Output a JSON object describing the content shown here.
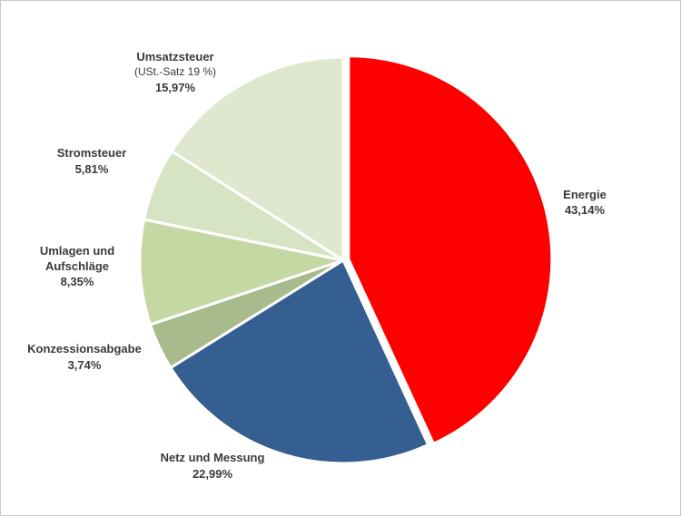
{
  "chart_data": {
    "type": "pie",
    "title": "",
    "slices": [
      {
        "name": "Energie",
        "lines": [
          "Energie"
        ],
        "value": 43.14,
        "value_label": "43,14%",
        "color": "#ff0000",
        "exploded": true
      },
      {
        "name": "Netz und Messung",
        "lines": [
          "Netz und Messung"
        ],
        "value": 22.99,
        "value_label": "22,99%",
        "color": "#355e91",
        "exploded": false
      },
      {
        "name": "Konzessionsabgabe",
        "lines": [
          "Konzessionsabgabe"
        ],
        "value": 3.74,
        "value_label": "3,74%",
        "color": "#a8bb8c",
        "exploded": false
      },
      {
        "name": "Umlagen und Aufschläge",
        "lines": [
          "Umlagen und",
          "Aufschläge"
        ],
        "value": 8.35,
        "value_label": "8,35%",
        "color": "#c4d8a4",
        "exploded": false
      },
      {
        "name": "Stromsteuer",
        "lines": [
          "Stromsteuer"
        ],
        "value": 5.81,
        "value_label": "5,81%",
        "color": "#d6e4c3",
        "exploded": false
      },
      {
        "name": "Umsatzsteuer",
        "lines": [
          "Umsatzsteuer"
        ],
        "note": "(USt.-Satz 19 %)",
        "value": 15.97,
        "value_label": "15,97%",
        "color": "#dfe8cf",
        "exploded": false
      }
    ]
  }
}
